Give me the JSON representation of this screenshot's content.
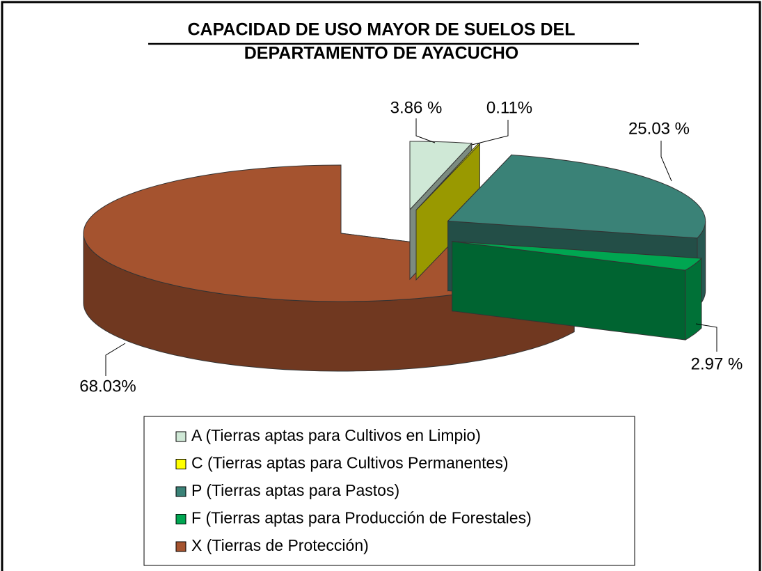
{
  "chart_data": {
    "type": "pie",
    "title": [
      "CAPACIDAD DE USO MAYOR DE SUELOS DEL",
      "DEPARTAMENTO DE AYACUCHO"
    ],
    "categories": [
      "A (Tierras aptas para Cultivos en Limpio)",
      "C (Tierras aptas para Cultivos Permanentes)",
      "P (Tierras aptas para Pastos)",
      "F (Tierras aptas para Producción de Forestales)",
      "X (Tierras de Protección)"
    ],
    "values": [
      3.86,
      0.11,
      25.03,
      2.97,
      68.03
    ],
    "value_labels": [
      "3.86 %",
      "0.11%",
      "25.03 %",
      "2.97 %",
      "68.03%"
    ],
    "colors": [
      "#cfe8d6",
      "#ffff00",
      "#3a8277",
      "#00a651",
      "#a5532f"
    ],
    "exploded": [
      true,
      true,
      true,
      true,
      false
    ],
    "legend": "bottom"
  }
}
